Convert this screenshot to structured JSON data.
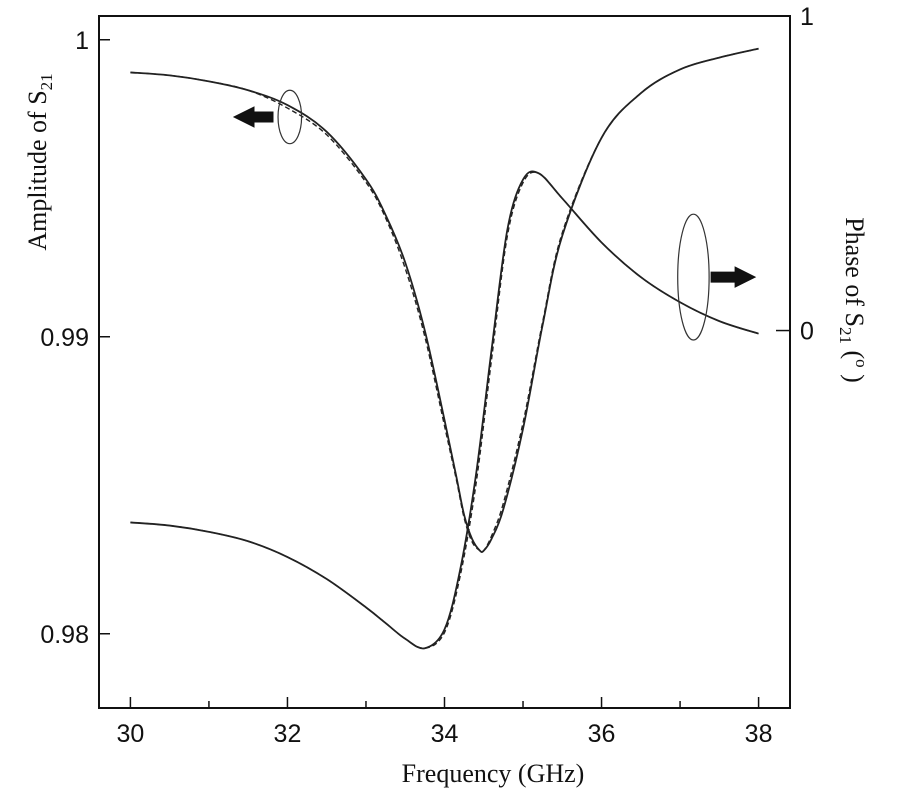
{
  "chart_data": {
    "type": "line",
    "xlabel": "Frequency (GHz)",
    "ylabel_left": {
      "text": "Amplitude of S",
      "sub": "21"
    },
    "ylabel_right": {
      "text": "Phase of S",
      "sub": "21",
      "suffix_open": " (",
      "sup": "o",
      "suffix_close": " )"
    },
    "xlim": [
      29.6,
      38.4
    ],
    "xticks": [
      30,
      32,
      34,
      36,
      38
    ],
    "xtick_minor_step": 1,
    "ylim_left": [
      0.9775,
      1.0008
    ],
    "yticks_left": [
      0.98,
      0.99,
      1
    ],
    "ytick_labels_left": [
      "0.98",
      "0.99",
      "1"
    ],
    "ylim_right": [
      -1.2,
      1.0
    ],
    "yticks_right": [
      0,
      1
    ],
    "ytick_labels_right": [
      "0",
      "1"
    ],
    "series": [
      {
        "axis": "left",
        "style": "solid",
        "x": [
          30,
          30.5,
          31,
          31.5,
          32,
          32.5,
          33,
          33.25,
          33.5,
          33.75,
          34,
          34.15,
          34.25,
          34.35,
          34.45,
          34.5,
          34.6,
          34.75,
          35,
          35.25,
          35.5,
          36,
          36.5,
          37,
          37.5,
          38
        ],
        "y": [
          0.9989,
          0.9988,
          0.9986,
          0.9983,
          0.9978,
          0.9969,
          0.9953,
          0.9941,
          0.9925,
          0.9902,
          0.9872,
          0.9853,
          0.984,
          0.9832,
          0.9828,
          0.9828,
          0.9832,
          0.9842,
          0.9869,
          0.9904,
          0.9934,
          0.9967,
          0.9982,
          0.999,
          0.9994,
          0.9997
        ]
      },
      {
        "axis": "left",
        "style": "dashed",
        "x": [
          30,
          30.5,
          31,
          31.5,
          32,
          32.5,
          33,
          33.25,
          33.5,
          33.75,
          34,
          34.15,
          34.25,
          34.35,
          34.45,
          34.5,
          34.6,
          34.75,
          35,
          35.25,
          35.5,
          36,
          36.5,
          37,
          37.5,
          38
        ],
        "y": [
          0.9989,
          0.9988,
          0.9986,
          0.9983,
          0.9977,
          0.9968,
          0.9952,
          0.994,
          0.9923,
          0.99,
          0.987,
          0.9852,
          0.9839,
          0.9831,
          0.9828,
          0.9828,
          0.9833,
          0.9844,
          0.9871,
          0.9905,
          0.9935,
          0.9967,
          0.9982,
          0.999,
          0.9994,
          0.9997
        ]
      },
      {
        "axis": "right",
        "style": "solid",
        "x": [
          30,
          30.5,
          31,
          31.5,
          32,
          32.5,
          33,
          33.25,
          33.5,
          33.75,
          34,
          34.2,
          34.4,
          34.6,
          34.8,
          35,
          35.2,
          35.5,
          36,
          36.5,
          37,
          37.5,
          38
        ],
        "y": [
          -0.61,
          -0.62,
          -0.64,
          -0.67,
          -0.72,
          -0.79,
          -0.88,
          -0.93,
          -0.98,
          -1.01,
          -0.95,
          -0.76,
          -0.46,
          -0.06,
          0.32,
          0.48,
          0.5,
          0.42,
          0.28,
          0.17,
          0.09,
          0.03,
          -0.01
        ]
      },
      {
        "axis": "right",
        "style": "dashed",
        "x": [
          30,
          30.5,
          31,
          31.5,
          32,
          32.5,
          33,
          33.25,
          33.5,
          33.75,
          34,
          34.2,
          34.4,
          34.6,
          34.8,
          35,
          35.2,
          35.5,
          36,
          36.5,
          37,
          37.5,
          38
        ],
        "y": [
          -0.61,
          -0.62,
          -0.64,
          -0.67,
          -0.72,
          -0.79,
          -0.88,
          -0.93,
          -0.98,
          -1.01,
          -0.96,
          -0.78,
          -0.49,
          -0.09,
          0.3,
          0.47,
          0.5,
          0.42,
          0.28,
          0.17,
          0.09,
          0.03,
          -0.01
        ]
      }
    ],
    "annotations": [
      {
        "type": "ellipse",
        "x": 32.03,
        "y_left": 0.9974,
        "rx_data": 0.15,
        "ry_left": 0.0009,
        "arrow": "left",
        "axis": "left"
      },
      {
        "type": "ellipse",
        "x": 37.17,
        "y_right": 0.17,
        "rx_data": 0.2,
        "ry_right": 0.2,
        "arrow": "right",
        "axis": "right"
      }
    ],
    "grid": false,
    "legend": "none"
  }
}
